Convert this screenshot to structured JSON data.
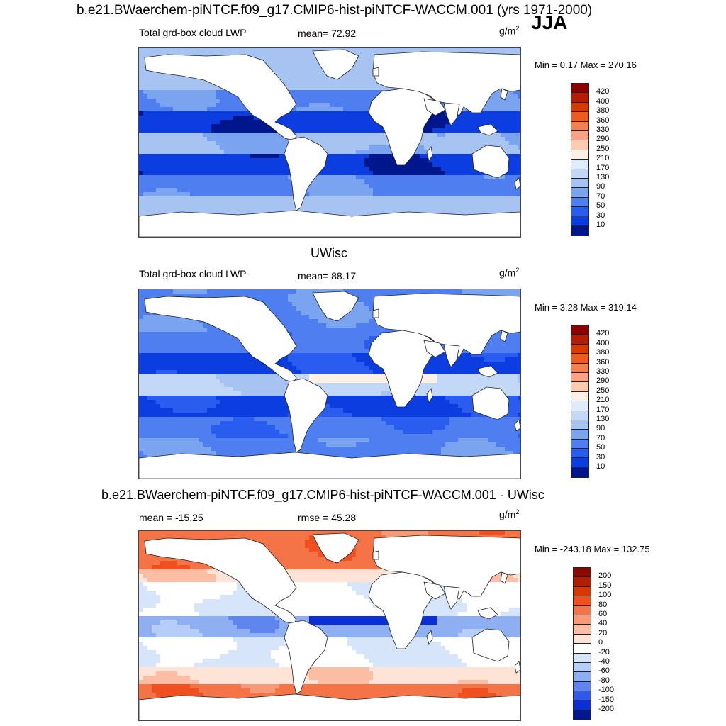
{
  "header": {
    "title": "b.e21.BWaerchem-piNTCF.f09_g17.CMIP6-hist-piNTCF-WACCM.001 (yrs 1971-2000)",
    "season": "JJA"
  },
  "panels": [
    {
      "section_title": "",
      "left_label": "Total grd-box cloud LWP",
      "center_label": "mean=  72.92",
      "units": "g/m",
      "units_exp": "2",
      "minmax": "Min =   0.17 Max = 270.16",
      "colorbar": {
        "levels": [
          "420",
          "400",
          "380",
          "360",
          "330",
          "290",
          "250",
          "210",
          "170",
          "130",
          "90",
          "70",
          "50",
          "30",
          "10"
        ],
        "colors": [
          "#8b0000",
          "#b41d00",
          "#d93a00",
          "#ef5a1e",
          "#f57f4d",
          "#fba383",
          "#fdcbb0",
          "#fff0e4",
          "#deecfb",
          "#c3d7f6",
          "#a6c3f2",
          "#7ba4f0",
          "#4f7ef0",
          "#2a5cf0",
          "#0b3de0",
          "#00168c"
        ]
      },
      "type": "abs"
    },
    {
      "section_title": "UWisc",
      "left_label": "Total grd-box cloud LWP",
      "center_label": "mean=  88.17",
      "units": "g/m",
      "units_exp": "2",
      "minmax": "Min =   3.28 Max = 319.14",
      "colorbar": {
        "levels": [
          "420",
          "400",
          "380",
          "360",
          "330",
          "290",
          "250",
          "210",
          "170",
          "130",
          "90",
          "70",
          "50",
          "30",
          "10"
        ],
        "colors": [
          "#8b0000",
          "#b41d00",
          "#d93a00",
          "#ef5a1e",
          "#f57f4d",
          "#fba383",
          "#fdcbb0",
          "#fff0e4",
          "#deecfb",
          "#c3d7f6",
          "#a6c3f2",
          "#7ba4f0",
          "#4f7ef0",
          "#2a5cf0",
          "#0b3de0",
          "#00168c"
        ]
      },
      "type": "abs2"
    },
    {
      "section_title": "b.e21.BWaerchem-piNTCF.f09_g17.CMIP6-hist-piNTCF-WACCM.001 - UWisc",
      "left_label": "mean = -15.25",
      "center_label": "rmse =  45.28",
      "units": "g/m",
      "units_exp": "2",
      "minmax": "Min = -243.18 Max = 132.75",
      "colorbar": {
        "levels": [
          "200",
          "150",
          "100",
          "80",
          "60",
          "40",
          "20",
          "0",
          "-20",
          "-40",
          "-60",
          "-80",
          "-100",
          "-150",
          "-200"
        ],
        "colors": [
          "#8b0a00",
          "#b02000",
          "#d83800",
          "#f05020",
          "#f47448",
          "#f89a78",
          "#fbbea4",
          "#fde4d6",
          "#ffffff",
          "#d7e5fb",
          "#b5cdf7",
          "#8eb0f2",
          "#5f86ef",
          "#2f58ec",
          "#0a2fd6",
          "#00188f"
        ]
      },
      "type": "diff"
    }
  ]
}
